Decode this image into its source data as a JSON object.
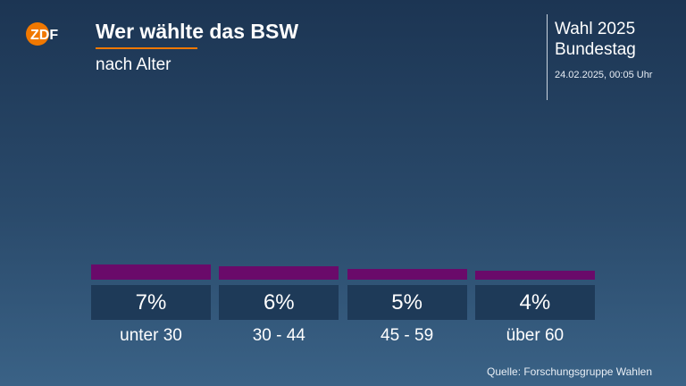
{
  "header": {
    "logo_text": "ZDF",
    "title": "Wer wählte das BSW",
    "subtitle": "nach Alter",
    "election_title": "Wahl 2025",
    "election_subtitle": "Bundestag",
    "timestamp": "24.02.2025, 00:05 Uhr"
  },
  "colors": {
    "bar": "#6a0a6a",
    "accent": "#f07800",
    "value_box": "#1e3a58"
  },
  "chart_data": {
    "type": "bar",
    "categories": [
      "unter 30",
      "30 - 44",
      "45 - 59",
      "über 60"
    ],
    "values": [
      7,
      6,
      5,
      4
    ],
    "value_labels": [
      "7%",
      "6%",
      "5%",
      "4%"
    ],
    "title": "Wer wählte das BSW",
    "subtitle": "nach Alter",
    "unit": "%",
    "ylim": [
      0,
      100
    ],
    "grid": false,
    "legend": "none"
  },
  "source": "Quelle: Forschungsgruppe Wahlen"
}
